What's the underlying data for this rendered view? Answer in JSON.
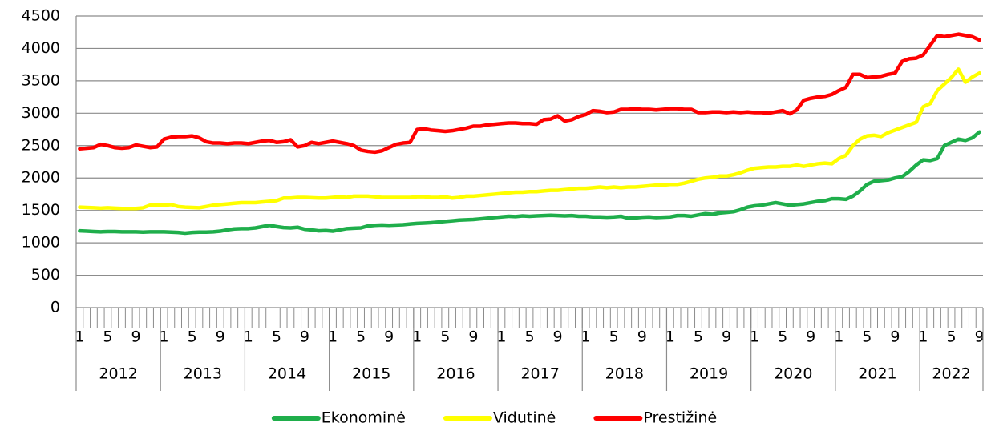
{
  "chart_data": {
    "type": "line",
    "categories": [
      "1",
      null,
      null,
      null,
      "5",
      null,
      null,
      null,
      "9",
      null,
      null,
      null,
      "1",
      null,
      null,
      null,
      "5",
      null,
      null,
      null,
      "9",
      null,
      null,
      null,
      "1",
      null,
      null,
      null,
      "5",
      null,
      null,
      null,
      "9",
      null,
      null,
      null,
      "1",
      null,
      null,
      null,
      "5",
      null,
      null,
      null,
      "9",
      null,
      null,
      null,
      "1",
      null,
      null,
      null,
      "5",
      null,
      null,
      null,
      "9",
      null,
      null,
      null,
      "1",
      null,
      null,
      null,
      "5",
      null,
      null,
      null,
      "9",
      null,
      null,
      null,
      "1",
      null,
      null,
      null,
      "5",
      null,
      null,
      null,
      "9",
      null,
      null,
      null,
      "1",
      null,
      null,
      null,
      "5",
      null,
      null,
      null,
      "9",
      null,
      null,
      null,
      "1",
      null,
      null,
      null,
      "5",
      null,
      null,
      null,
      "9",
      null,
      null,
      null,
      "1",
      null,
      null,
      null,
      "5",
      null,
      null,
      null,
      "9",
      null,
      null,
      null,
      "1",
      null,
      null,
      null,
      "5",
      null,
      null,
      null,
      "9"
    ],
    "x_groups": [
      "2012",
      "2013",
      "2014",
      "2015",
      "2016",
      "2017",
      "2018",
      "2019",
      "2020",
      "2021",
      "2022"
    ],
    "series": [
      {
        "name": "Ekonominė",
        "color": "#1fae4b",
        "values": [
          1185,
          1180,
          1175,
          1170,
          1175,
          1175,
          1170,
          1170,
          1170,
          1165,
          1170,
          1170,
          1170,
          1165,
          1160,
          1150,
          1160,
          1165,
          1165,
          1170,
          1180,
          1200,
          1215,
          1220,
          1220,
          1230,
          1250,
          1270,
          1250,
          1235,
          1230,
          1240,
          1210,
          1200,
          1185,
          1190,
          1180,
          1200,
          1220,
          1225,
          1230,
          1260,
          1270,
          1275,
          1270,
          1275,
          1280,
          1290,
          1300,
          1305,
          1310,
          1320,
          1330,
          1340,
          1350,
          1355,
          1360,
          1370,
          1380,
          1390,
          1400,
          1410,
          1405,
          1415,
          1410,
          1415,
          1420,
          1425,
          1420,
          1415,
          1420,
          1410,
          1410,
          1400,
          1400,
          1395,
          1400,
          1410,
          1380,
          1385,
          1395,
          1400,
          1390,
          1395,
          1400,
          1420,
          1420,
          1410,
          1430,
          1450,
          1440,
          1460,
          1470,
          1480,
          1510,
          1550,
          1570,
          1580,
          1600,
          1620,
          1600,
          1580,
          1590,
          1600,
          1620,
          1640,
          1650,
          1680,
          1680,
          1670,
          1720,
          1800,
          1900,
          1950,
          1960,
          1970,
          2000,
          2020,
          2100,
          2200,
          2280,
          2270,
          2300,
          2500,
          2550,
          2600,
          2580,
          2620,
          2710
        ]
      },
      {
        "name": "Vidutinė",
        "color": "#ffff00",
        "values": [
          1550,
          1545,
          1540,
          1535,
          1540,
          1535,
          1530,
          1530,
          1530,
          1540,
          1580,
          1580,
          1580,
          1590,
          1560,
          1550,
          1545,
          1540,
          1560,
          1580,
          1590,
          1600,
          1610,
          1620,
          1620,
          1620,
          1630,
          1640,
          1650,
          1690,
          1690,
          1700,
          1700,
          1695,
          1690,
          1690,
          1700,
          1710,
          1700,
          1720,
          1720,
          1720,
          1710,
          1700,
          1700,
          1700,
          1700,
          1700,
          1710,
          1710,
          1700,
          1700,
          1710,
          1690,
          1700,
          1720,
          1720,
          1730,
          1740,
          1750,
          1760,
          1770,
          1780,
          1780,
          1790,
          1790,
          1800,
          1810,
          1810,
          1820,
          1830,
          1840,
          1840,
          1850,
          1860,
          1850,
          1860,
          1850,
          1860,
          1860,
          1870,
          1880,
          1890,
          1890,
          1900,
          1900,
          1920,
          1950,
          1980,
          2000,
          2010,
          2030,
          2030,
          2050,
          2080,
          2120,
          2150,
          2160,
          2170,
          2170,
          2180,
          2180,
          2200,
          2180,
          2200,
          2220,
          2230,
          2220,
          2300,
          2350,
          2500,
          2600,
          2650,
          2660,
          2640,
          2700,
          2740,
          2780,
          2820,
          2860,
          3100,
          3150,
          3350,
          3450,
          3550,
          3680,
          3480,
          3560,
          3620
        ]
      },
      {
        "name": "Prestižinė",
        "color": "#ff0000",
        "values": [
          2450,
          2460,
          2470,
          2520,
          2500,
          2470,
          2460,
          2470,
          2510,
          2490,
          2470,
          2480,
          2600,
          2630,
          2640,
          2640,
          2650,
          2620,
          2560,
          2540,
          2540,
          2530,
          2540,
          2540,
          2530,
          2550,
          2570,
          2580,
          2550,
          2560,
          2590,
          2480,
          2500,
          2550,
          2530,
          2550,
          2570,
          2550,
          2530,
          2500,
          2430,
          2410,
          2400,
          2420,
          2470,
          2520,
          2540,
          2550,
          2750,
          2760,
          2740,
          2730,
          2720,
          2730,
          2750,
          2770,
          2800,
          2800,
          2820,
          2830,
          2840,
          2850,
          2850,
          2840,
          2840,
          2830,
          2900,
          2910,
          2960,
          2880,
          2900,
          2950,
          2980,
          3040,
          3030,
          3010,
          3020,
          3060,
          3060,
          3070,
          3060,
          3060,
          3050,
          3060,
          3070,
          3070,
          3060,
          3060,
          3010,
          3010,
          3020,
          3020,
          3010,
          3020,
          3010,
          3020,
          3010,
          3010,
          3000,
          3020,
          3040,
          2990,
          3050,
          3200,
          3230,
          3250,
          3260,
          3290,
          3350,
          3400,
          3600,
          3600,
          3550,
          3560,
          3570,
          3600,
          3620,
          3800,
          3840,
          3850,
          3900,
          4050,
          4200,
          4180,
          4200,
          4220,
          4200,
          4180,
          4130
        ]
      }
    ],
    "ylim": [
      0,
      4500
    ],
    "yticks": [
      0,
      500,
      1000,
      1500,
      2000,
      2500,
      3000,
      3500,
      4000,
      4500
    ],
    "grid": true,
    "legend": "bottom"
  }
}
